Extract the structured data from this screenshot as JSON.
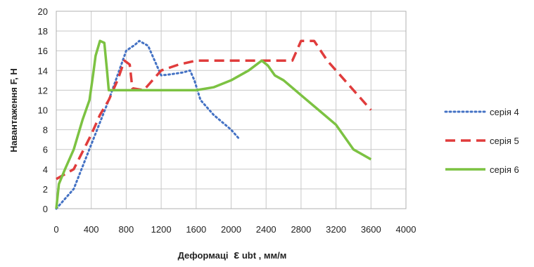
{
  "chart_data": {
    "type": "line",
    "title": "",
    "xlabel_prefix": "Деформаці",
    "xlabel_symbol": "ε",
    "xlabel_sub": "ubt",
    "xlabel_unit": ", мм/м",
    "ylabel": "Навантаження  F, Н",
    "xlim": [
      0,
      4000
    ],
    "ylim": [
      0,
      20
    ],
    "x_ticks": [
      0,
      400,
      800,
      1200,
      1600,
      2000,
      2400,
      2800,
      3200,
      3600,
      4000
    ],
    "y_ticks": [
      0,
      2,
      4,
      6,
      8,
      10,
      12,
      14,
      16,
      18,
      20
    ],
    "grid": true,
    "legend_position": "right",
    "series": [
      {
        "name": "серія 4",
        "color": "#4472c4",
        "style": "dotted",
        "points": [
          [
            0,
            0
          ],
          [
            200,
            2
          ],
          [
            400,
            6.5
          ],
          [
            600,
            11
          ],
          [
            800,
            16
          ],
          [
            900,
            16.6
          ],
          [
            950,
            17
          ],
          [
            1050,
            16.5
          ],
          [
            1150,
            14.5
          ],
          [
            1200,
            13.5
          ],
          [
            1300,
            13.6
          ],
          [
            1450,
            13.8
          ],
          [
            1530,
            14
          ],
          [
            1580,
            13
          ],
          [
            1650,
            11
          ],
          [
            1800,
            9.5
          ],
          [
            2000,
            8
          ],
          [
            2100,
            7
          ]
        ]
      },
      {
        "name": "серія 5",
        "color": "#e03c3c",
        "style": "dashed",
        "points": [
          [
            0,
            3
          ],
          [
            200,
            4
          ],
          [
            400,
            7.5
          ],
          [
            500,
            9.5
          ],
          [
            600,
            11
          ],
          [
            700,
            13
          ],
          [
            780,
            15
          ],
          [
            840,
            14.6
          ],
          [
            870,
            12.2
          ],
          [
            1000,
            12
          ],
          [
            1200,
            14
          ],
          [
            1400,
            14.6
          ],
          [
            1600,
            15
          ],
          [
            2000,
            15
          ],
          [
            2400,
            15
          ],
          [
            2700,
            15
          ],
          [
            2800,
            17
          ],
          [
            2950,
            17
          ],
          [
            3100,
            15
          ],
          [
            3300,
            13
          ],
          [
            3600,
            10
          ]
        ]
      },
      {
        "name": "серія 6",
        "color": "#7cc242",
        "style": "solid",
        "points": [
          [
            0,
            0
          ],
          [
            30,
            2.5
          ],
          [
            100,
            4
          ],
          [
            200,
            6
          ],
          [
            300,
            9
          ],
          [
            380,
            11
          ],
          [
            420,
            13.5
          ],
          [
            450,
            15.5
          ],
          [
            500,
            17
          ],
          [
            550,
            16.8
          ],
          [
            580,
            14
          ],
          [
            600,
            12
          ],
          [
            800,
            12
          ],
          [
            1200,
            12
          ],
          [
            1600,
            12
          ],
          [
            1800,
            12.3
          ],
          [
            2000,
            13
          ],
          [
            2200,
            14
          ],
          [
            2350,
            15
          ],
          [
            2420,
            14.5
          ],
          [
            2500,
            13.5
          ],
          [
            2600,
            13
          ],
          [
            2800,
            11.5
          ],
          [
            3000,
            10
          ],
          [
            3200,
            8.5
          ],
          [
            3400,
            6
          ],
          [
            3600,
            5
          ]
        ]
      }
    ]
  }
}
